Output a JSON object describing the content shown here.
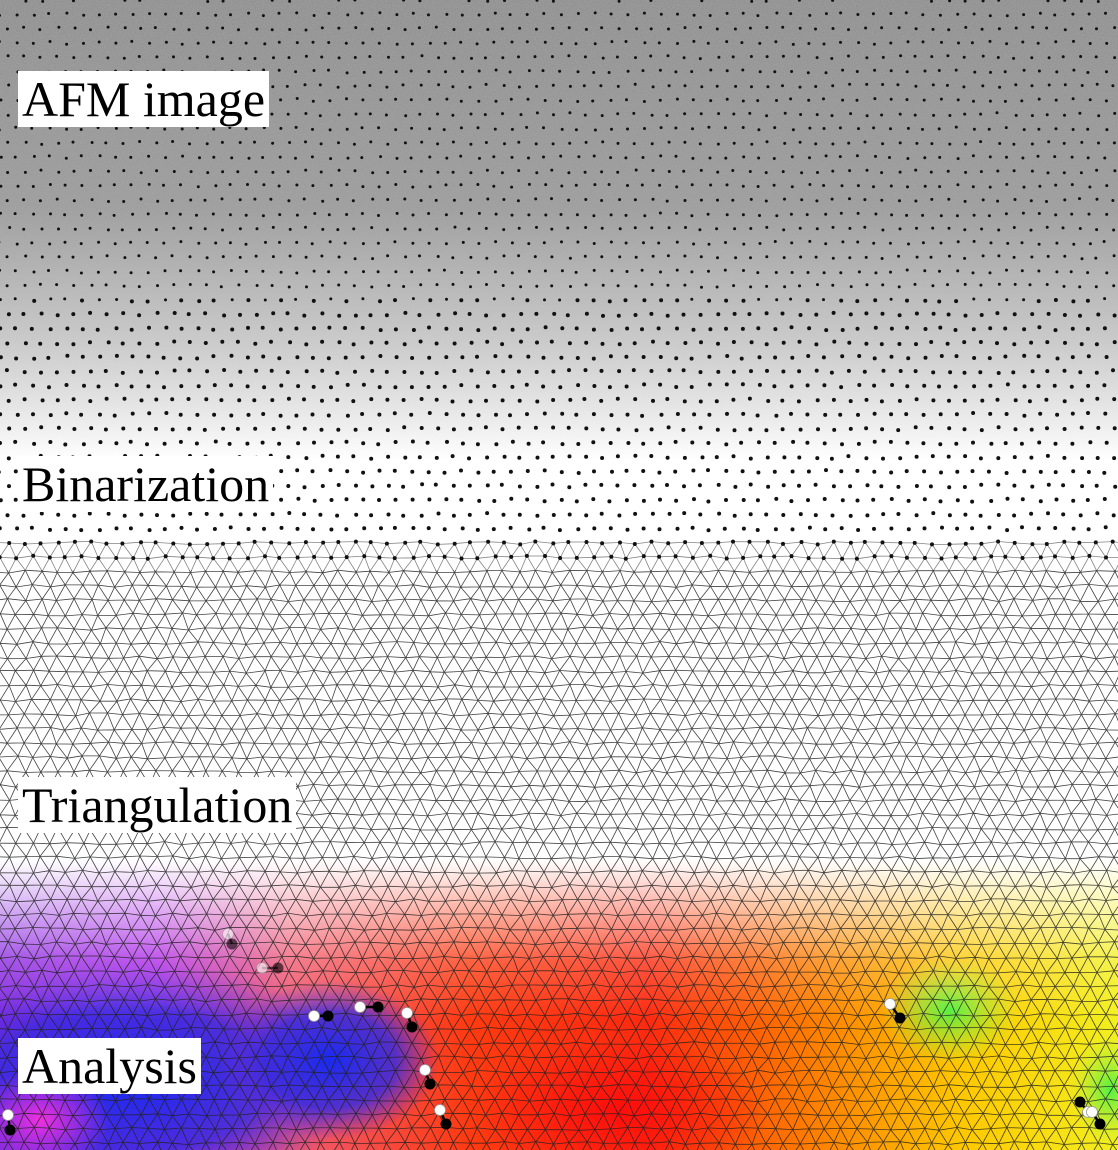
{
  "labels": {
    "afm": "AFM image",
    "binarization": "Binarization",
    "triangulation": "Triangulation",
    "analysis": "Analysis"
  },
  "colors": {
    "afm_gray": "#8a8a8a",
    "afm_light": "#e8e8e8",
    "dot": "#111111",
    "mesh": "#222222",
    "analysis_orientation": [
      "#2a2ad8",
      "#8a2ae0",
      "#e03ae0",
      "#f06060",
      "#ff2a10",
      "#ff8a00",
      "#ffd000",
      "#ffff20",
      "#60f040"
    ],
    "defect_plus": "#ffffff",
    "defect_minus": "#000000"
  }
}
